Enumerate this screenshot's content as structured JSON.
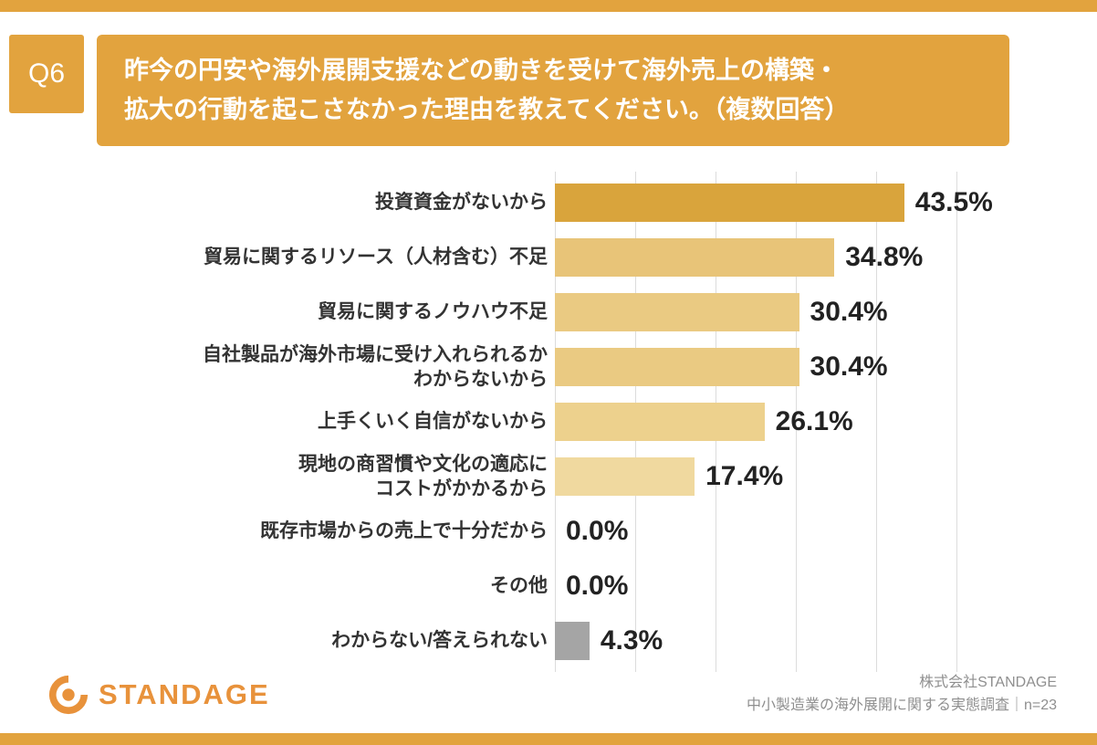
{
  "header": {
    "question_id": "Q6",
    "question_text": "昨今の円安や海外展開支援などの動きを受けて海外売上の構築・\n拡大の行動を起こさなかった理由を教えてください。（複数回答）"
  },
  "chart_data": {
    "type": "bar",
    "orientation": "horizontal",
    "title": "",
    "xlabel": "",
    "ylabel": "",
    "xlim": [
      0,
      50
    ],
    "grid": true,
    "gridline_values": [
      0,
      10,
      20,
      30,
      40,
      50
    ],
    "legend": false,
    "categories": [
      "投資資金がないから",
      "貿易に関するリソース（人材含む）不足",
      "貿易に関するノウハウ不足",
      "自社製品が海外市場に受け入れられるか\nわからないから",
      "上手くいく自信がないから",
      "現地の商習慣や文化の適応に\nコストがかかるから",
      "既存市場からの売上で十分だから",
      "その他",
      "わからない/答えられない"
    ],
    "values": [
      43.5,
      34.8,
      30.4,
      30.4,
      26.1,
      17.4,
      0.0,
      0.0,
      4.3
    ],
    "value_labels": [
      "43.5%",
      "34.8%",
      "30.4%",
      "30.4%",
      "26.1%",
      "17.4%",
      "0.0%",
      "0.0%",
      "4.3%"
    ],
    "bar_colors": [
      "#D9A43C",
      "#E8C478",
      "#EACA82",
      "#EACA82",
      "#EDD18D",
      "#F0D99F",
      "",
      "",
      "#A5A5A5"
    ]
  },
  "footer": {
    "brand_name": "STANDAGE",
    "credit_line1": "株式会社STANDAGE",
    "credit_line2": "中小製造業の海外展開に関する実態調査｜n=23"
  },
  "colors": {
    "accent_orange": "#E2A33E",
    "logo_orange": "#E8923B",
    "grid_gray": "#DCDCDC",
    "value_text": "#222222",
    "label_text": "#333333",
    "credit_gray": "#8F8F8F"
  }
}
